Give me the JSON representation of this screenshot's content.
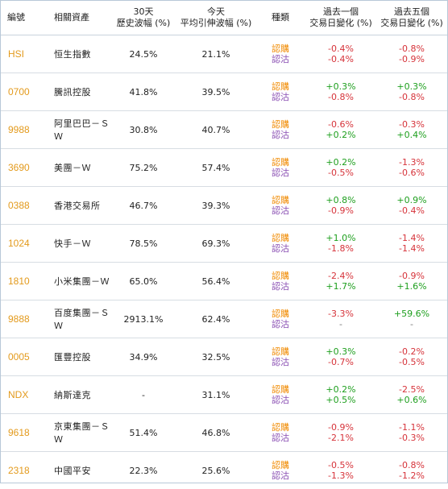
{
  "headers": {
    "code": "編號",
    "asset": "相關資產",
    "hv_line1": "30天",
    "hv_line2": "歷史波幅 (%)",
    "iv_line1": "今天",
    "iv_line2": "平均引伸波幅 (%)",
    "type": "種類",
    "chg1_line1": "過去一個",
    "chg1_line2": "交易日變化 (%)",
    "chg5_line1": "過去五個",
    "chg5_line2": "交易日變化 (%)"
  },
  "colors": {
    "code": "#e39a1c",
    "call": "#f08a00",
    "put": "#8a4fb3",
    "up": "#1e9f1e",
    "down": "#d6333a"
  },
  "rows": [
    {
      "code": "HSI",
      "name": "恒生指數",
      "hv": "24.5%",
      "iv": "21.1%",
      "call": "認購",
      "put": "認沽",
      "d1_call": "-0.4%",
      "d1_put": "-0.4%",
      "d5_call": "-0.8%",
      "d5_put": "-0.9%"
    },
    {
      "code": "0700",
      "name": "騰訊控股",
      "hv": "41.8%",
      "iv": "39.5%",
      "call": "認購",
      "put": "認沽",
      "d1_call": "+0.3%",
      "d1_put": "-0.8%",
      "d5_call": "+0.3%",
      "d5_put": "-0.8%"
    },
    {
      "code": "9988",
      "name": "阿里巴巴－ＳＷ",
      "hv": "30.8%",
      "iv": "40.7%",
      "call": "認購",
      "put": "認沽",
      "d1_call": "-0.6%",
      "d1_put": "+0.2%",
      "d5_call": "-0.3%",
      "d5_put": "+0.4%"
    },
    {
      "code": "3690",
      "name": "美團－Ｗ",
      "hv": "75.2%",
      "iv": "57.4%",
      "call": "認購",
      "put": "認沽",
      "d1_call": "+0.2%",
      "d1_put": "-0.5%",
      "d5_call": "-1.3%",
      "d5_put": "-0.6%"
    },
    {
      "code": "0388",
      "name": "香港交易所",
      "hv": "46.7%",
      "iv": "39.3%",
      "call": "認購",
      "put": "認沽",
      "d1_call": "+0.8%",
      "d1_put": "-0.9%",
      "d5_call": "+0.9%",
      "d5_put": "-0.4%"
    },
    {
      "code": "1024",
      "name": "快手－Ｗ",
      "hv": "78.5%",
      "iv": "69.3%",
      "call": "認購",
      "put": "認沽",
      "d1_call": "+1.0%",
      "d1_put": "-1.8%",
      "d5_call": "-1.4%",
      "d5_put": "-1.4%"
    },
    {
      "code": "1810",
      "name": "小米集團－Ｗ",
      "hv": "65.0%",
      "iv": "56.4%",
      "call": "認購",
      "put": "認沽",
      "d1_call": "-2.4%",
      "d1_put": "+1.7%",
      "d5_call": "-0.9%",
      "d5_put": "+1.6%"
    },
    {
      "code": "9888",
      "name": "百度集團－ＳＷ",
      "hv": "2913.1%",
      "iv": "62.4%",
      "call": "認購",
      "put": "認沽",
      "d1_call": "-3.3%",
      "d1_put": "-",
      "d5_call": "+59.6%",
      "d5_put": "-"
    },
    {
      "code": "0005",
      "name": "匯豐控股",
      "hv": "34.9%",
      "iv": "32.5%",
      "call": "認購",
      "put": "認沽",
      "d1_call": "+0.3%",
      "d1_put": "-0.7%",
      "d5_call": "-0.2%",
      "d5_put": "-0.5%"
    },
    {
      "code": "NDX",
      "name": "納斯達克",
      "hv": "-",
      "iv": "31.1%",
      "call": "認購",
      "put": "認沽",
      "d1_call": "+0.2%",
      "d1_put": "+0.5%",
      "d5_call": "-2.5%",
      "d5_put": "+0.6%"
    },
    {
      "code": "9618",
      "name": "京東集團－ＳＷ",
      "hv": "51.4%",
      "iv": "46.8%",
      "call": "認購",
      "put": "認沽",
      "d1_call": "-0.9%",
      "d1_put": "-2.1%",
      "d5_call": "-1.1%",
      "d5_put": "-0.3%"
    },
    {
      "code": "2318",
      "name": "中國平安",
      "hv": "22.3%",
      "iv": "25.6%",
      "call": "認購",
      "put": "認沽",
      "d1_call": "-0.5%",
      "d1_put": "-1.3%",
      "d5_call": "-0.8%",
      "d5_put": "-1.2%"
    }
  ]
}
